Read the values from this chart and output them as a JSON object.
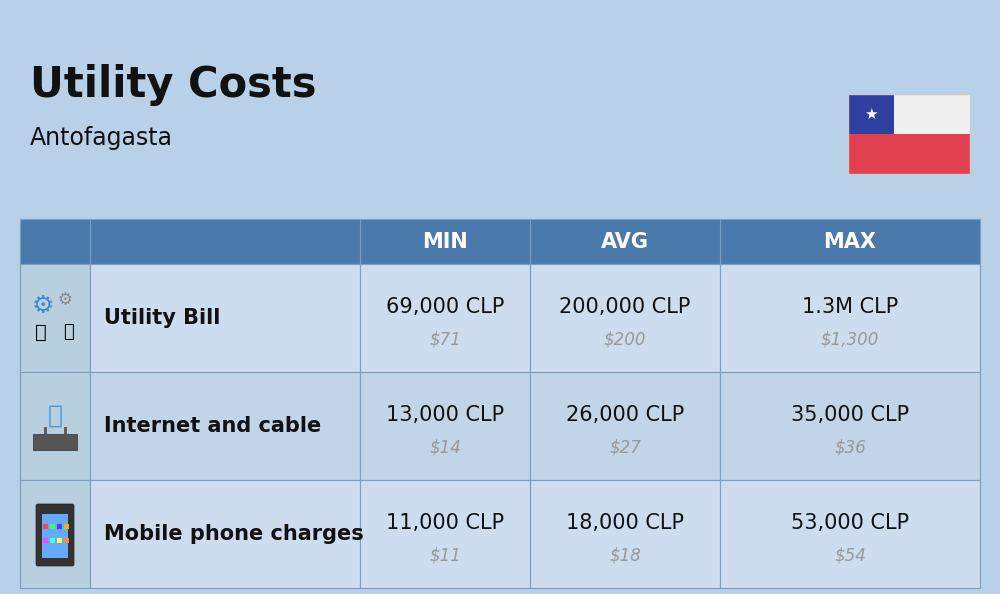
{
  "title": "Utility Costs",
  "subtitle": "Antofagasta",
  "background_color": "#b8d0e8",
  "table_header_color": "#4a7aab",
  "table_header_text_color": "#ffffff",
  "row_bg_light": "#cddcee",
  "row_bg_dark": "#c2d4e8",
  "icon_col_bg": "#b8cfe0",
  "flag_colors": {
    "white": "#f0f0f0",
    "red": "#e04050",
    "blue": "#3040a0",
    "star": "#ffffff"
  },
  "rows": [
    {
      "label": "Utility Bill",
      "min_clp": "69,000 CLP",
      "min_usd": "$71",
      "avg_clp": "200,000 CLP",
      "avg_usd": "$200",
      "max_clp": "1.3M CLP",
      "max_usd": "$1,300"
    },
    {
      "label": "Internet and cable",
      "min_clp": "13,000 CLP",
      "min_usd": "$14",
      "avg_clp": "26,000 CLP",
      "avg_usd": "$27",
      "max_clp": "35,000 CLP",
      "max_usd": "$36"
    },
    {
      "label": "Mobile phone charges",
      "min_clp": "11,000 CLP",
      "min_usd": "$11",
      "avg_clp": "18,000 CLP",
      "avg_usd": "$18",
      "max_clp": "53,000 CLP",
      "max_usd": "$54"
    }
  ],
  "title_fontsize": 30,
  "subtitle_fontsize": 17,
  "header_fontsize": 15,
  "label_fontsize": 15,
  "value_fontsize": 15,
  "usd_fontsize": 12,
  "usd_color": "#999999",
  "label_color": "#111111",
  "value_color": "#111111"
}
